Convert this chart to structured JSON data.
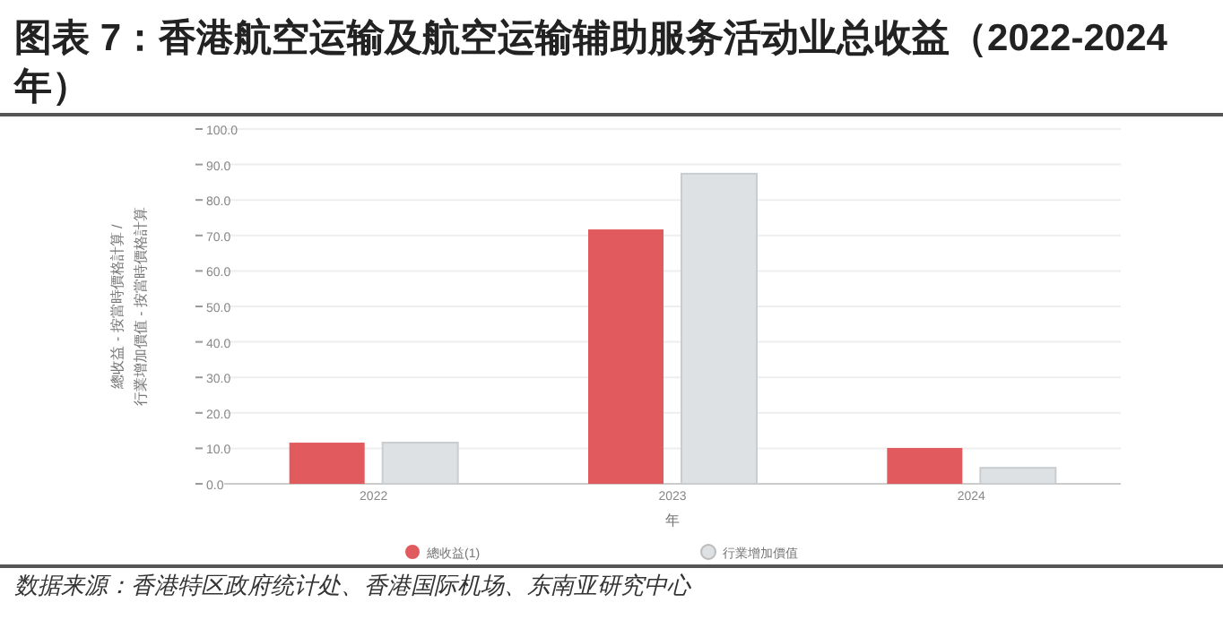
{
  "chart_data": {
    "type": "bar",
    "title": "图表 7：香港航空运输及航空运输辅助服务活动业总收益（2022-2024 年）",
    "xlabel": "年",
    "ylabel": "總收益 - 按當時價格計算 / 行業增加價值 - 按當時價格計算",
    "categories": [
      "2022",
      "2023",
      "2024"
    ],
    "series": [
      {
        "name": "總收益(1)",
        "color": "#e05a5e",
        "values": [
          11.6,
          71.7,
          10.1
        ]
      },
      {
        "name": "行業增加價值",
        "color": "#dde1e3",
        "values": [
          11.6,
          87.4,
          4.5
        ]
      }
    ],
    "ylim": [
      0,
      100
    ],
    "yticks": [
      {
        "value": 0,
        "label": "0.0"
      },
      {
        "value": 10,
        "label": "10.0"
      },
      {
        "value": 20,
        "label": "20.0"
      },
      {
        "value": 30,
        "label": "30.0"
      },
      {
        "value": 40,
        "label": "40.0"
      },
      {
        "value": 50,
        "label": "50.0"
      },
      {
        "value": 60,
        "label": "60.0"
      },
      {
        "value": 70,
        "label": "70.0"
      },
      {
        "value": 80,
        "label": "80.0"
      },
      {
        "value": 90,
        "label": "90.0"
      },
      {
        "value": 100,
        "label": "100.0"
      }
    ],
    "grid": "y",
    "legend": "bottom",
    "annotations": [
      "数据来源：香港特区政府统计处、香港国际机场、东南亚研究中心"
    ]
  }
}
